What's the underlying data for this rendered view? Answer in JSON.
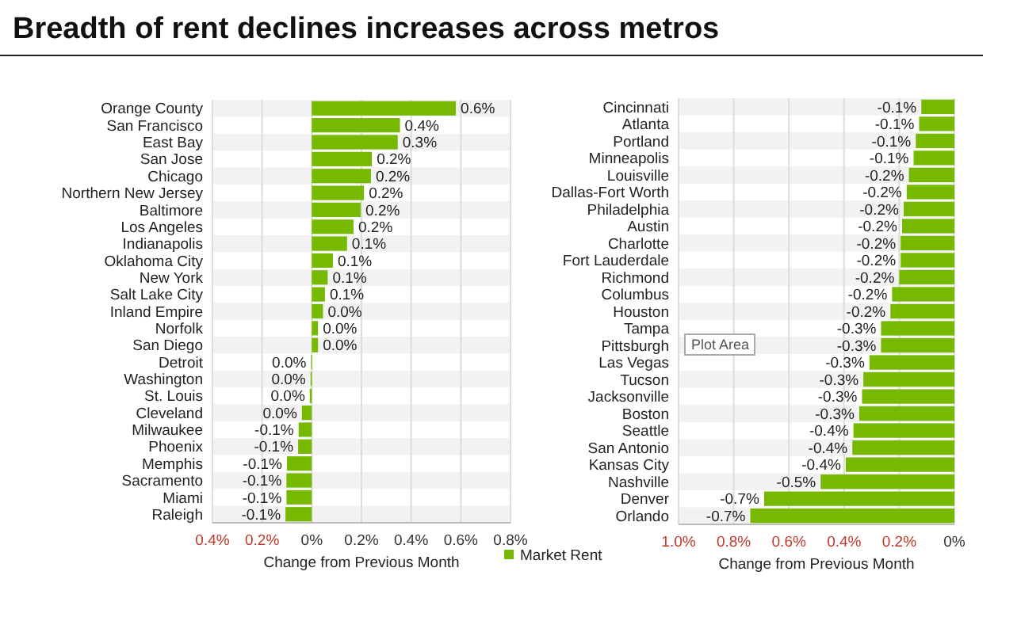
{
  "chart_data": [
    {
      "type": "bar",
      "orientation": "horizontal",
      "title": "Breadth of rent declines increases across metros",
      "xlabel": "Change from Previous Month",
      "categories": [
        "Orange County",
        "San Francisco",
        "East Bay",
        "San Jose",
        "Chicago",
        "Northern New Jersey",
        "Baltimore",
        "Los Angeles",
        "Indianapolis",
        "Oklahoma City",
        "New York",
        "Salt Lake City",
        "Inland Empire",
        "Norfolk",
        "San Diego",
        "Detroit",
        "Washington",
        "St. Louis",
        "Cleveland",
        "Milwaukee",
        "Phoenix",
        "Memphis",
        "Sacramento",
        "Miami",
        "Raleigh"
      ],
      "series": [
        {
          "color": "#76b900",
          "values": [
            0.58,
            0.355,
            0.346,
            0.242,
            0.238,
            0.21,
            0.197,
            0.168,
            0.142,
            0.085,
            0.064,
            0.053,
            0.045,
            0.025,
            0.025,
            -0.003,
            -0.005,
            -0.008,
            -0.04,
            -0.053,
            -0.055,
            -0.1,
            -0.102,
            -0.102,
            -0.106
          ],
          "value_labels": [
            "0.6%",
            "0.4%",
            "0.3%",
            "0.2%",
            "0.2%",
            "0.2%",
            "0.2%",
            "0.2%",
            "0.1%",
            "0.1%",
            "0.1%",
            "0.1%",
            "0.0%",
            "0.0%",
            "0.0%",
            "0.0%",
            "0.0%",
            "0.0%",
            "0.0%",
            "-0.1%",
            "-0.1%",
            "-0.1%",
            "-0.1%",
            "-0.1%",
            "-0.1%"
          ]
        }
      ],
      "xlim": [
        -0.4,
        0.8
      ],
      "xticks": [
        {
          "value": -0.4,
          "label": "0.4%"
        },
        {
          "value": -0.2,
          "label": "0.2%"
        },
        {
          "value": 0,
          "label": "0%"
        },
        {
          "value": 0.2,
          "label": "0.2%"
        },
        {
          "value": 0.4,
          "label": "0.4%"
        },
        {
          "value": 0.6,
          "label": "0.6%"
        },
        {
          "value": 0.8,
          "label": "0.8%"
        }
      ],
      "grid": "x"
    },
    {
      "type": "bar",
      "orientation": "horizontal",
      "xlabel": "Change from Previous Month",
      "categories": [
        "Cincinnati",
        "Atlanta",
        "Portland",
        "Minneapolis",
        "Louisville",
        "Dallas-Fort Worth",
        "Philadelphia",
        "Austin",
        "Charlotte",
        "Fort Lauderdale",
        "Richmond",
        "Columbus",
        "Houston",
        "Tampa",
        "Pittsburgh",
        "Las Vegas",
        "Tucson",
        "Jacksonville",
        "Boston",
        "Seattle",
        "San Antonio",
        "Kansas City",
        "Nashville",
        "Denver",
        "Orlando"
      ],
      "series": [
        {
          "name": "Market Rent",
          "color": "#76b900",
          "values": [
            -0.12,
            -0.128,
            -0.14,
            -0.148,
            -0.165,
            -0.173,
            -0.184,
            -0.19,
            -0.195,
            -0.195,
            -0.2,
            -0.226,
            -0.232,
            -0.266,
            -0.266,
            -0.308,
            -0.33,
            -0.335,
            -0.345,
            -0.366,
            -0.37,
            -0.394,
            -0.485,
            -0.69,
            -0.74
          ],
          "value_labels": [
            "-0.1%",
            "-0.1%",
            "-0.1%",
            "-0.1%",
            "-0.2%",
            "-0.2%",
            "-0.2%",
            "-0.2%",
            "-0.2%",
            "-0.2%",
            "-0.2%",
            "-0.2%",
            "-0.2%",
            "-0.3%",
            "-0.3%",
            "-0.3%",
            "-0.3%",
            "-0.3%",
            "-0.3%",
            "-0.4%",
            "-0.4%",
            "-0.4%",
            "-0.5%",
            "-0.7%",
            "-0.7%"
          ]
        }
      ],
      "xlim": [
        -1.0,
        0
      ],
      "xticks": [
        {
          "value": -1.0,
          "label": "1.0%"
        },
        {
          "value": -0.8,
          "label": "0.8%"
        },
        {
          "value": -0.6,
          "label": "0.6%"
        },
        {
          "value": -0.4,
          "label": "0.4%"
        },
        {
          "value": -0.2,
          "label": "0.2%"
        },
        {
          "value": 0,
          "label": "0%"
        }
      ],
      "grid": "x",
      "legend": "bottom",
      "annotations": [
        "Plot Area"
      ]
    }
  ]
}
